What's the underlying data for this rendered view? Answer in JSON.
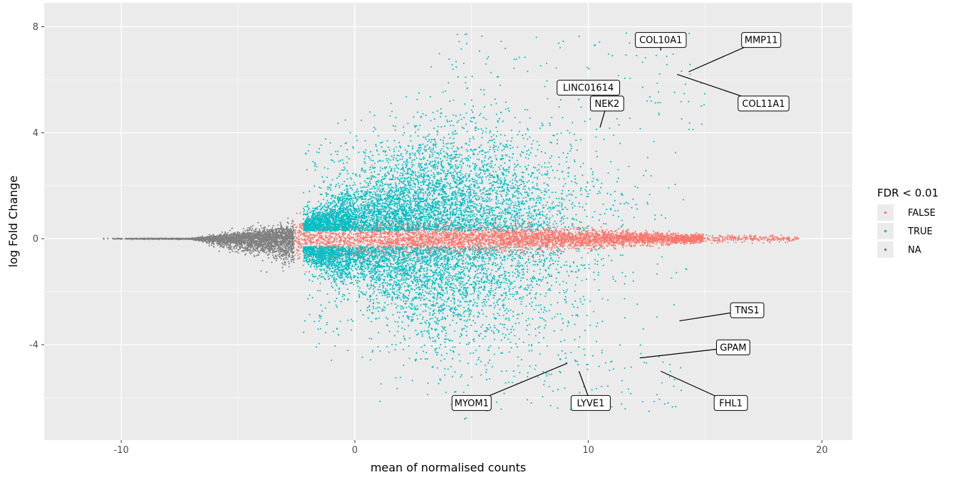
{
  "chart_data": {
    "type": "scatter",
    "title": "",
    "xlabel": "mean of normalised counts",
    "ylabel": "log Fold Change",
    "xlim": [
      -13.3,
      21.3
    ],
    "ylim": [
      -7.6,
      8.9
    ],
    "xticks": [
      -10,
      0,
      10,
      20
    ],
    "xtick_labels": [
      "-10",
      "0",
      "10",
      "20"
    ],
    "yticks": [
      -4,
      0,
      4,
      8
    ],
    "ytick_labels": [
      "-4",
      "0",
      "4",
      "8"
    ],
    "grid": true,
    "legend": {
      "title": "FDR < 0.01",
      "position": "right",
      "entries": [
        {
          "label": "FALSE",
          "color": "#F8766D"
        },
        {
          "label": "TRUE",
          "color": "#00BFC4"
        },
        {
          "label": "NA",
          "color": "#808080"
        }
      ]
    },
    "series": [
      {
        "name": "FALSE",
        "color": "#F8766D"
      },
      {
        "name": "TRUE",
        "color": "#00BFC4"
      },
      {
        "name": "NA",
        "color": "#808080"
      }
    ],
    "labeled_genes": [
      {
        "gene": "COL10A1",
        "x": 13.1,
        "y": 7.1,
        "label_x": 13.1,
        "label_y": 7.5
      },
      {
        "gene": "MMP11",
        "x": 14.3,
        "y": 6.3,
        "label_x": 17.4,
        "label_y": 7.5
      },
      {
        "gene": "COL11A1",
        "x": 13.8,
        "y": 6.2,
        "label_x": 17.5,
        "label_y": 5.1
      },
      {
        "gene": "LINC01614",
        "x": 9.9,
        "y": 5.7,
        "label_x": 10.0,
        "label_y": 5.7
      },
      {
        "gene": "NEK2",
        "x": 10.5,
        "y": 4.2,
        "label_x": 10.8,
        "label_y": 5.1
      },
      {
        "gene": "TNS1",
        "x": 13.9,
        "y": -3.1,
        "label_x": 16.8,
        "label_y": -2.7
      },
      {
        "gene": "GPAM",
        "x": 12.2,
        "y": -4.5,
        "label_x": 16.2,
        "label_y": -4.1
      },
      {
        "gene": "FHL1",
        "x": 13.1,
        "y": -5.0,
        "label_x": 16.1,
        "label_y": -6.2
      },
      {
        "gene": "MYOM1",
        "x": 9.1,
        "y": -4.7,
        "label_x": 5.0,
        "label_y": -6.2
      },
      {
        "gene": "LYVE1",
        "x": 9.6,
        "y": -5.0,
        "label_x": 10.1,
        "label_y": -6.2
      }
    ]
  }
}
